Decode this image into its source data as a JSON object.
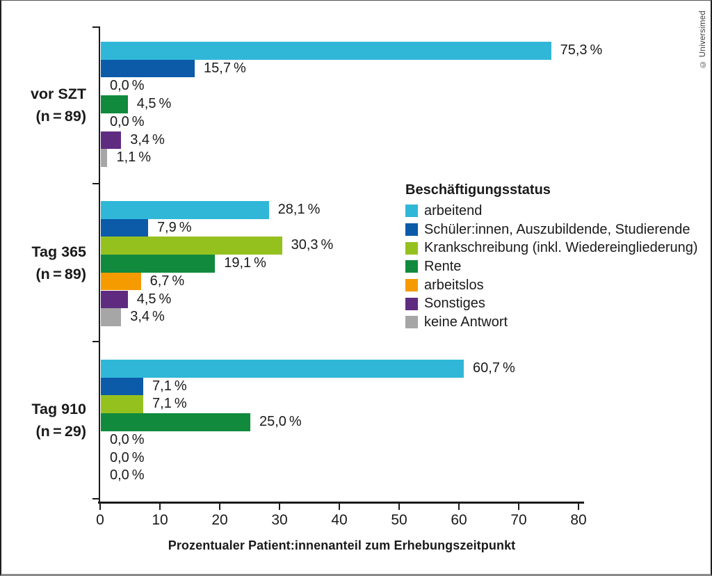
{
  "copyright": "© Universimed",
  "chart_data": {
    "type": "bar",
    "orientation": "horizontal",
    "title": "",
    "xlabel": "Prozentualer Patient:innenanteil zum Erhebungszeitpunkt",
    "ylabel": "",
    "xlim": [
      0,
      80
    ],
    "xticks": [
      "0",
      "10",
      "20",
      "30",
      "40",
      "50",
      "60",
      "70",
      "80"
    ],
    "grid": false,
    "legend": {
      "title": "Beschäftigungsstatus",
      "position": "center-right"
    },
    "categories": [
      {
        "name": "arbeitend",
        "color": "#30b7d8"
      },
      {
        "name": "Schüler:innen, Auszubildende, Studierende",
        "color": "#0b5ba8"
      },
      {
        "name": "Krankschreibung (inkl. Wiedereingliederung)",
        "color": "#95c11f"
      },
      {
        "name": "Rente",
        "color": "#118a3e"
      },
      {
        "name": "arbeitslos",
        "color": "#f59b00"
      },
      {
        "name": "Sonstiges",
        "color": "#5f2b80"
      },
      {
        "name": "keine Antwort",
        "color": "#a6a6a6"
      }
    ],
    "groups": [
      {
        "label": "vor SZT",
        "n_label": "(n = 89)",
        "values": [
          75.3,
          15.7,
          0.0,
          4.5,
          0.0,
          3.4,
          1.1
        ],
        "value_labels": [
          "75,3 %",
          "15,7 %",
          "0,0 %",
          "4,5 %",
          "0,0 %",
          "3,4 %",
          "1,1 %"
        ]
      },
      {
        "label": "Tag 365",
        "n_label": "(n = 89)",
        "values": [
          28.1,
          7.9,
          30.3,
          19.1,
          6.7,
          4.5,
          3.4
        ],
        "value_labels": [
          "28,1 %",
          "7,9 %",
          "30,3 %",
          "19,1 %",
          "6,7 %",
          "4,5 %",
          "3,4 %"
        ]
      },
      {
        "label": "Tag 910",
        "n_label": "(n = 29)",
        "values": [
          60.7,
          7.1,
          7.1,
          25.0,
          0.0,
          0.0,
          0.0
        ],
        "value_labels": [
          "60,7 %",
          "7,1 %",
          "7,1 %",
          "25,0 %",
          "0,0 %",
          "0,0 %",
          "0,0 %"
        ]
      }
    ]
  }
}
